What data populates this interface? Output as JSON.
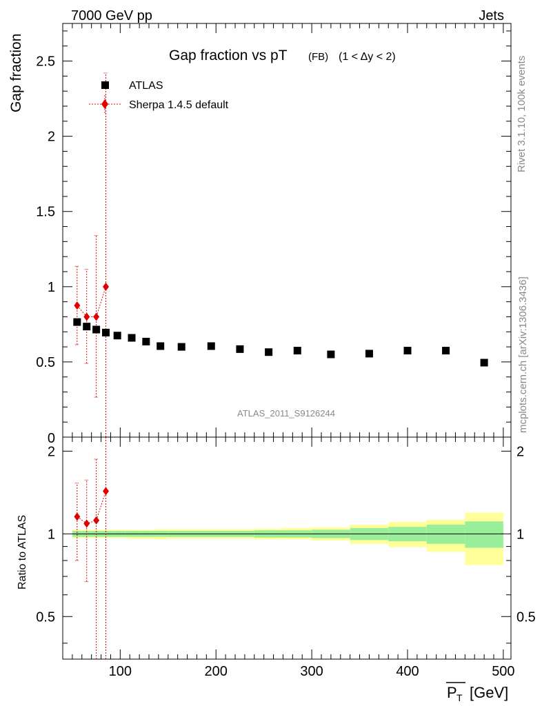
{
  "header": {
    "energy": "7000 GeV pp",
    "category": "Jets"
  },
  "side_text": {
    "rivet": "Rivet 3.1.10,  100k events",
    "mcplots": "mcplots.cern.ch [arXiv:1306.3436]"
  },
  "chart_data": [
    {
      "type": "scatter",
      "panel": "main",
      "title": "Gap fraction vs pT",
      "title_sub": "(FB)",
      "title_range": "(1 < Δy < 2)",
      "ylabel": "Gap fraction",
      "xlim": [
        40,
        508
      ],
      "ylim": [
        0,
        2.75
      ],
      "yticks": [
        0.5,
        1,
        1.5,
        2,
        2.5
      ],
      "ytick_labels": [
        "0.5",
        "1",
        "1.5",
        "2",
        "2.5"
      ],
      "ybottom_label": "0",
      "watermark": "ATLAS_2011_S9126244",
      "legend": [
        {
          "name": "ATLAS",
          "marker": "square",
          "color": "#000000"
        },
        {
          "name": "Sherpa 1.4.5 default",
          "marker": "diamond",
          "color": "#e00000"
        }
      ],
      "series": [
        {
          "name": "ATLAS",
          "x": [
            55,
            65,
            75,
            85,
            97,
            112,
            127,
            142,
            164,
            195,
            225,
            255,
            285,
            320,
            360,
            400,
            440,
            480
          ],
          "values": [
            0.765,
            0.735,
            0.715,
            0.695,
            0.675,
            0.66,
            0.635,
            0.605,
            0.6,
            0.605,
            0.585,
            0.565,
            0.575,
            0.55,
            0.555,
            0.575,
            0.575,
            0.495
          ]
        },
        {
          "name": "Sherpa 1.4.5 default",
          "x": [
            55,
            65,
            75,
            85
          ],
          "values": [
            0.875,
            0.8,
            0.8,
            1.0
          ],
          "err_lo": [
            0.615,
            0.49,
            0.265,
            0.0
          ],
          "err_hi": [
            1.135,
            1.115,
            1.34,
            2.42
          ]
        }
      ]
    },
    {
      "type": "scatter",
      "panel": "ratio",
      "ylabel": "Ratio to ATLAS",
      "xlabel": "P_T [GeV]",
      "xlabel_main": "P",
      "xlabel_sub": "T",
      "xlabel_unit": "[GeV]",
      "xlim": [
        40,
        508
      ],
      "ylim": [
        0.35,
        2.25
      ],
      "yticks": [
        0.5,
        1,
        2
      ],
      "ytick_labels": [
        "0.5",
        "1",
        "2"
      ],
      "xticks": [
        100,
        200,
        300,
        400,
        500
      ],
      "xtick_labels": [
        "100",
        "200",
        "300",
        "400",
        "500"
      ],
      "bands": {
        "edges": [
          50,
          60,
          70,
          80,
          90,
          105,
          120,
          135,
          150,
          180,
          210,
          240,
          270,
          300,
          340,
          380,
          420,
          460,
          500
        ],
        "inner_lo": [
          0.975,
          0.975,
          0.975,
          0.975,
          0.975,
          0.975,
          0.975,
          0.975,
          0.975,
          0.975,
          0.975,
          0.97,
          0.97,
          0.965,
          0.95,
          0.94,
          0.92,
          0.89
        ],
        "inner_hi": [
          1.025,
          1.025,
          1.025,
          1.025,
          1.025,
          1.025,
          1.025,
          1.025,
          1.025,
          1.025,
          1.025,
          1.03,
          1.03,
          1.035,
          1.05,
          1.06,
          1.08,
          1.11
        ],
        "outer_lo": [
          0.965,
          0.965,
          0.965,
          0.965,
          0.965,
          0.96,
          0.96,
          0.955,
          0.96,
          0.96,
          0.96,
          0.955,
          0.955,
          0.945,
          0.92,
          0.895,
          0.86,
          0.77
        ],
        "outer_hi": [
          1.035,
          1.035,
          1.035,
          1.035,
          1.035,
          1.035,
          1.035,
          1.04,
          1.04,
          1.04,
          1.04,
          1.045,
          1.05,
          1.055,
          1.08,
          1.105,
          1.125,
          1.195
        ],
        "inner_color": "#99ee99",
        "outer_color": "#ffff99"
      },
      "series": [
        {
          "name": "Sherpa 1.4.5 default",
          "x": [
            55,
            65,
            75,
            85
          ],
          "values": [
            1.155,
            1.09,
            1.12,
            1.43
          ],
          "err_lo": [
            0.8,
            0.67,
            0.0,
            0.0
          ],
          "err_hi": [
            1.53,
            1.57,
            1.87,
            2.6
          ]
        }
      ]
    }
  ]
}
